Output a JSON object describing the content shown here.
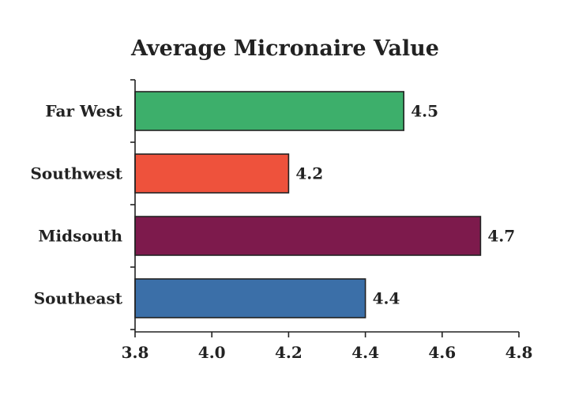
{
  "chart_data": {
    "type": "bar",
    "orientation": "horizontal",
    "title": "Average Micronaire Value",
    "xlabel": "",
    "ylabel": "",
    "categories": [
      "Far West",
      "Southwest",
      "Midsouth",
      "Southeast"
    ],
    "values": [
      4.5,
      4.2,
      4.7,
      4.4
    ],
    "value_labels": [
      "4.5",
      "4.2",
      "4.7",
      "4.4"
    ],
    "colors": [
      "#3daf6b",
      "#ee523c",
      "#7d1a4c",
      "#3b6fa8"
    ],
    "xlim": [
      3.8,
      4.8
    ],
    "xticks": [
      3.8,
      4.0,
      4.2,
      4.4,
      4.6,
      4.8
    ],
    "xtick_labels": [
      "3.8",
      "4.0",
      "4.2",
      "4.4",
      "4.6",
      "4.8"
    ],
    "grid": false,
    "legend": "none"
  }
}
